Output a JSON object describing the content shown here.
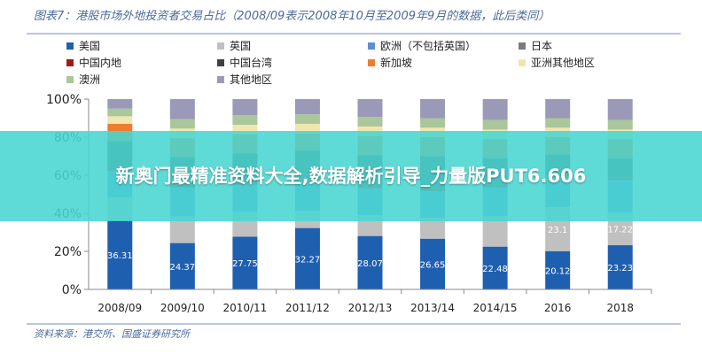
{
  "chart_data": {
    "type": "bar",
    "stacked": true,
    "title": "图表7：港股市场外地投资者交易占比（2008/09表示2008年10月至2009年9月的数据，此后类同）",
    "source": "资料来源：港交所、国盛证券研究所",
    "categories": [
      "2008/09",
      "2009/10",
      "2010/11",
      "2011/12",
      "2012/13",
      "2013/14",
      "2014/15",
      "2016",
      "2018"
    ],
    "y_ticks": [
      "0%",
      "20%",
      "40%",
      "60%",
      "80%",
      "100%"
    ],
    "ylim": [
      0,
      100
    ],
    "legend_position": "top",
    "grid": false,
    "series": [
      {
        "name": "美国",
        "color": "#1f5fb0",
        "values": [
          36.31,
          24.37,
          27.75,
          32.27,
          28.07,
          26.65,
          22.48,
          20.12,
          23.23
        ]
      },
      {
        "name": "英国",
        "color": "#c0c0c0",
        "values": [
          12.0,
          14.0,
          13.0,
          9.0,
          11.0,
          11.0,
          16.0,
          23.1,
          17.22
        ]
      },
      {
        "name": "欧洲（不包括英国）",
        "color": "#5b8fd6",
        "values": [
          14.0,
          15.0,
          14.0,
          15.0,
          14.0,
          14.0,
          15.0,
          16.0,
          17.0
        ]
      },
      {
        "name": "日本",
        "color": "#7a7a7a",
        "values": [
          0,
          0,
          0,
          0,
          0,
          0,
          0,
          0,
          0
        ]
      },
      {
        "name": "中国内地",
        "color": "#9e1b1b",
        "values": [
          1.5,
          1.5,
          1.5,
          1.5,
          1.5,
          1.5,
          1.5,
          1.5,
          1.5
        ]
      },
      {
        "name": "中国台湾",
        "color": "#404040",
        "values": [
          14.19,
          14.63,
          15.26,
          15.23,
          16.03,
          16.85,
          14.02,
          10.28,
          10.05
        ]
      },
      {
        "name": "新加坡",
        "color": "#ed7d31",
        "values": [
          9.0,
          10.0,
          10.0,
          9.0,
          10.0,
          10.0,
          10.0,
          9.0,
          10.0
        ]
      },
      {
        "name": "亚洲其他地区",
        "color": "#f0e6b0",
        "values": [
          4.0,
          5.0,
          5.0,
          5.0,
          5.0,
          5.0,
          5.0,
          5.0,
          5.0
        ]
      },
      {
        "name": "澳洲",
        "color": "#a9c79a",
        "values": [
          4.0,
          5.0,
          5.0,
          5.0,
          5.0,
          5.0,
          5.0,
          5.0,
          5.0
        ]
      },
      {
        "name": "其他地区",
        "color": "#9a9ab8",
        "values": [
          5.0,
          10.5,
          8.5,
          8.0,
          9.4,
          10.0,
          11.0,
          10.0,
          11.0
        ]
      }
    ],
    "data_labels": {
      "美国": [
        "36.31",
        "24.37",
        "27.75",
        "32.27",
        "28.07",
        "26.65",
        "22.48",
        "20.12",
        "23.23"
      ],
      "英国": [
        "",
        "",
        "",
        "",
        "",
        "",
        "",
        "23.1",
        "17.22"
      ]
    }
  },
  "overlay": {
    "banner_text": "新奥门最精准资料大全,数据解析引导_力量版PUT6.606",
    "banner_color": "#48d6d2"
  }
}
